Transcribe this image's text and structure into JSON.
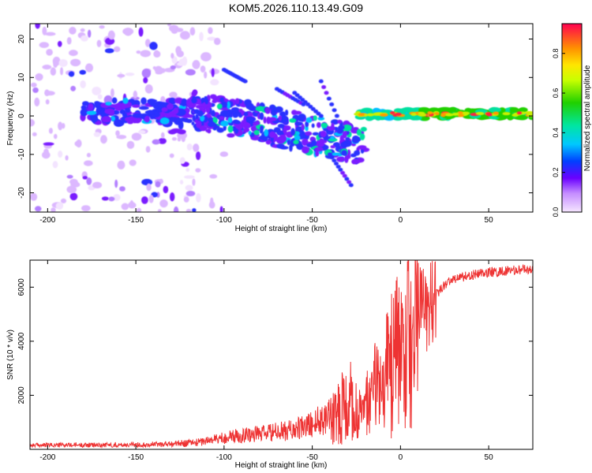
{
  "title": "KOM5.2026.110.13.49.G09",
  "chart_data": [
    {
      "type": "heatmap",
      "title": "KOM5.2026.110.13.49.G09",
      "xlabel": "Height of straight line (km)",
      "ylabel": "Frequency (Hz)",
      "xlim": [
        -210,
        75
      ],
      "ylim": [
        -25,
        24
      ],
      "xticks": [
        -200,
        -150,
        -100,
        -50,
        0,
        50
      ],
      "yticks": [
        -20,
        -10,
        0,
        10,
        20
      ],
      "colorbar": {
        "label": "Normalized spectral amplitude",
        "range": [
          0.0,
          0.95
        ],
        "ticks": [
          0.0,
          0.2,
          0.4,
          0.6,
          0.8
        ],
        "tick_labels": [
          "0.0",
          "0.2",
          "0.4",
          "0.6",
          "0.8"
        ]
      },
      "features": [
        {
          "x_range": [
            -210,
            -120
          ],
          "y_range": [
            -25,
            24
          ],
          "amplitude": 0.08
        },
        {
          "x_range": [
            -180,
            -120
          ],
          "y_range": [
            -2,
            4
          ],
          "amplitude": 0.2
        },
        {
          "x_range": [
            -120,
            -20
          ],
          "y_range": [
            -15,
            5
          ],
          "amplitude": 0.25
        },
        {
          "x_range": [
            -25,
            75
          ],
          "y_range": [
            -1,
            2
          ],
          "amplitude": 0.6
        }
      ],
      "grid": false
    },
    {
      "type": "line",
      "xlabel": "Height of straight line (km)",
      "ylabel": "SNR (10 * v/v)",
      "xlim": [
        -210,
        75
      ],
      "ylim": [
        0,
        7000
      ],
      "xticks": [
        -200,
        -150,
        -100,
        -50,
        0,
        50
      ],
      "yticks": [
        2000,
        4000,
        6000
      ],
      "color": "#ee3333",
      "series": [
        {
          "x": [
            -210,
            -190,
            -170,
            -150,
            -130,
            -115,
            -105,
            -95,
            -85,
            -75,
            -65,
            -55,
            -45,
            -35,
            -28,
            -22,
            -18,
            -12,
            -5,
            0,
            5,
            10,
            15,
            20,
            25,
            30,
            40,
            50,
            60,
            70,
            75
          ],
          "values": [
            150,
            160,
            160,
            170,
            200,
            260,
            380,
            480,
            560,
            600,
            680,
            800,
            1100,
            1650,
            2200,
            1200,
            2000,
            2800,
            3600,
            4300,
            5000,
            5500,
            5100,
            5700,
            6100,
            6300,
            6450,
            6550,
            6600,
            6650,
            6650
          ]
        }
      ],
      "grid": false
    }
  ]
}
